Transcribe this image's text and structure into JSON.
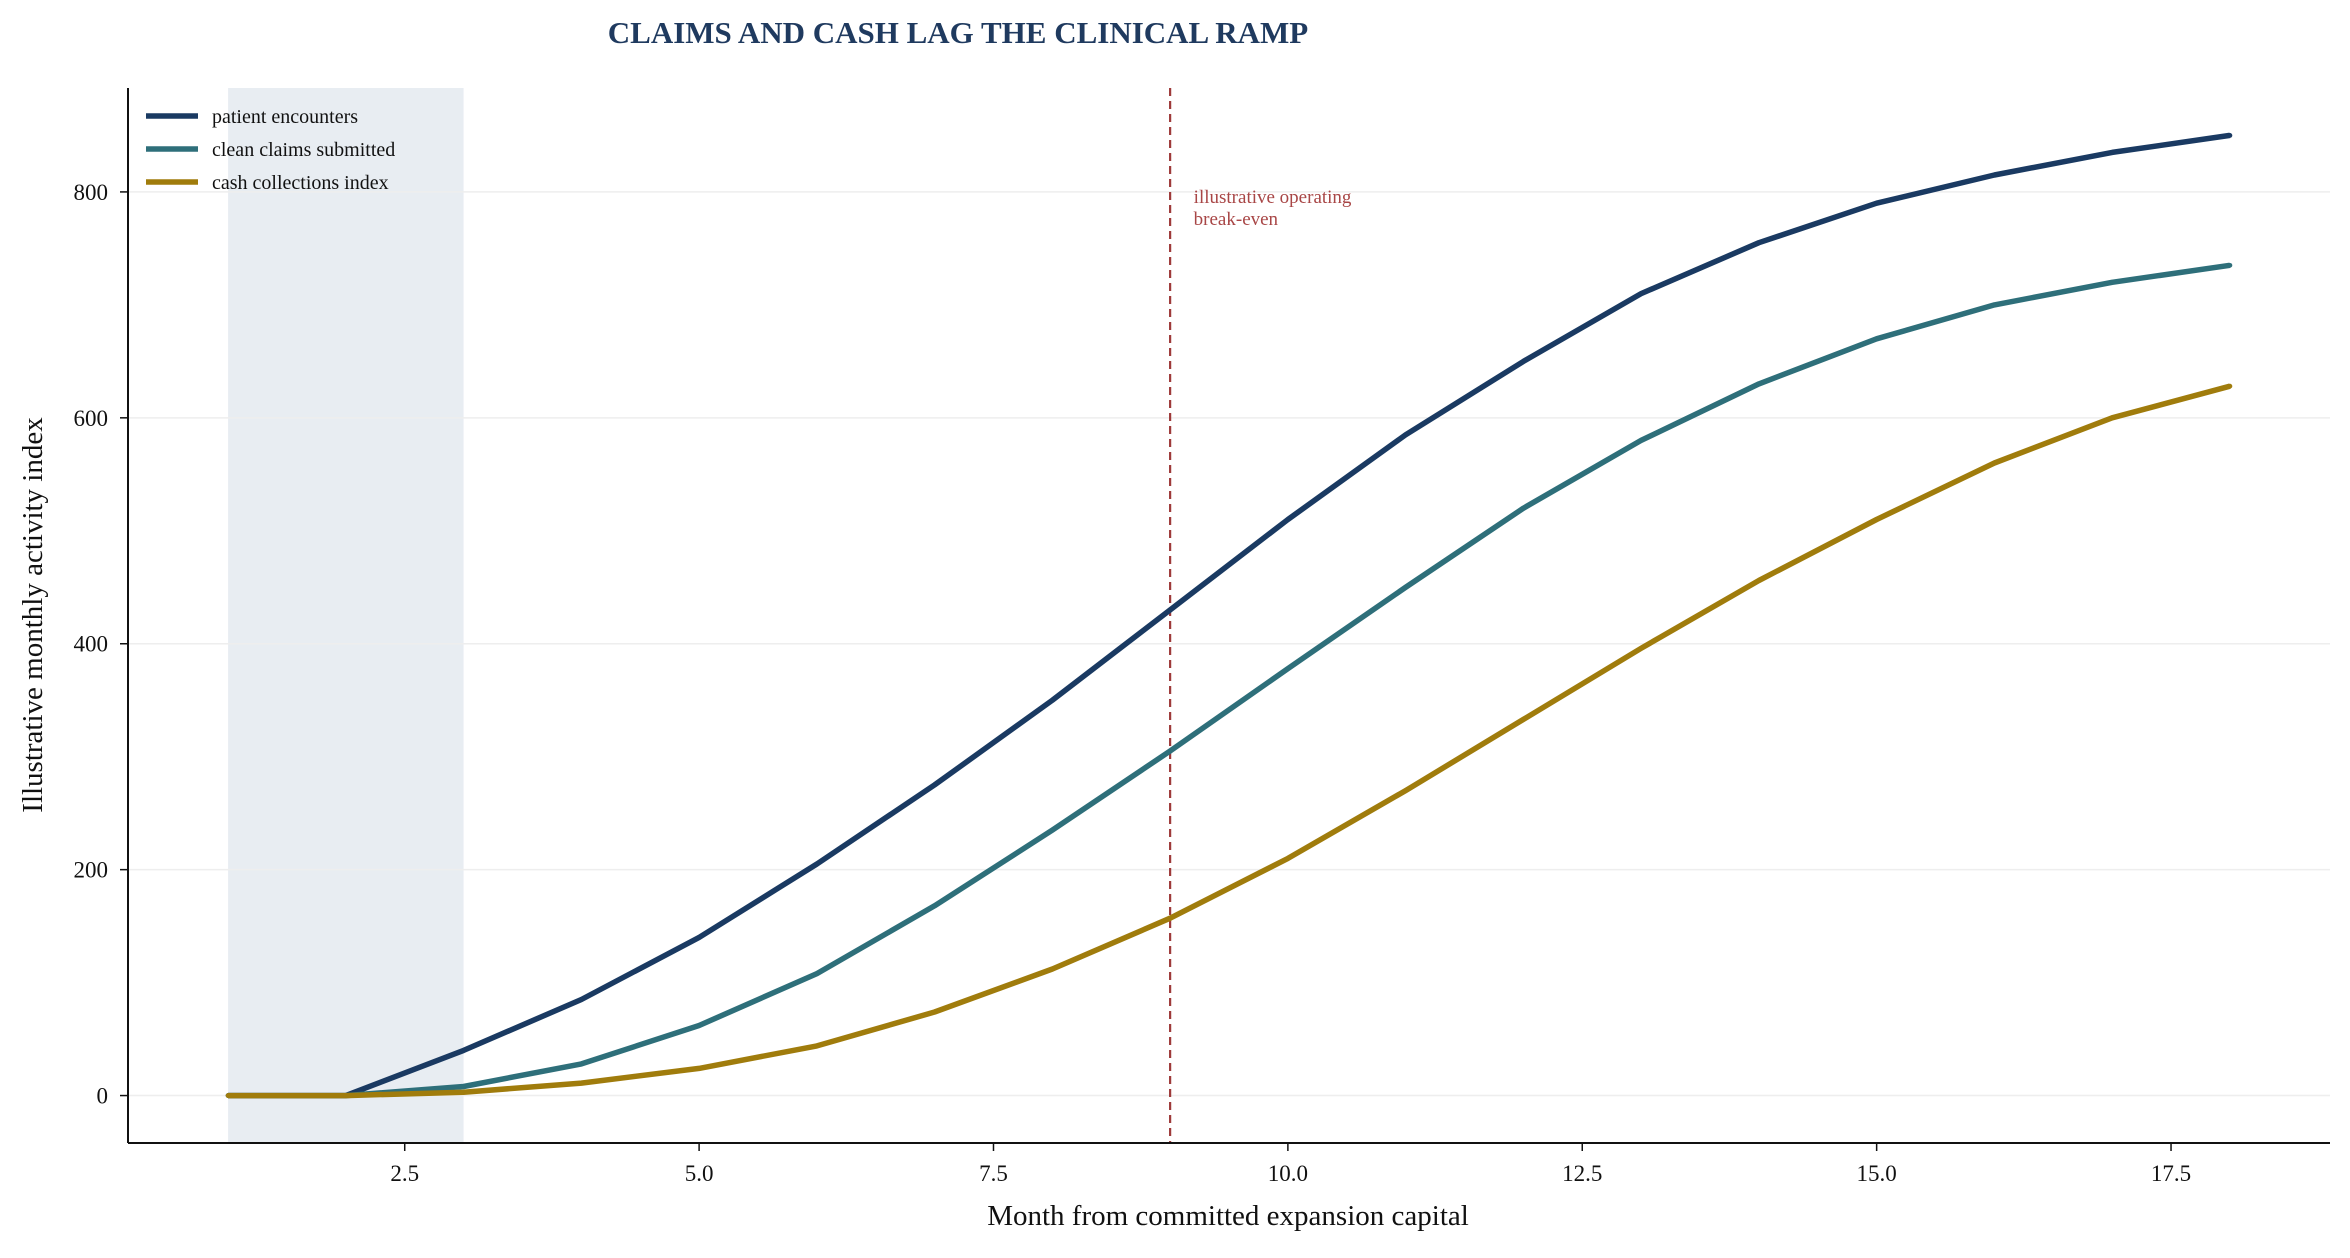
{
  "chart_data": {
    "type": "line",
    "title": "CLAIMS AND CASH LAG THE CLINICAL RAMP",
    "xlabel": "Month from committed expansion capital",
    "ylabel": "Illustrative monthly activity index",
    "xlim": [
      0.15,
      18.85
    ],
    "ylim": [
      -42,
      892
    ],
    "x_ticks": [
      2.5,
      5.0,
      7.5,
      10.0,
      12.5,
      15.0,
      17.5
    ],
    "x_tick_labels": [
      "2.5",
      "5.0",
      "7.5",
      "10.0",
      "12.5",
      "15.0",
      "17.5"
    ],
    "y_ticks": [
      0,
      200,
      400,
      600,
      800
    ],
    "y_tick_labels": [
      "0",
      "200",
      "400",
      "600",
      "800"
    ],
    "grid": "horizontal",
    "legend_position": "top-left",
    "x": [
      1,
      2,
      3,
      4,
      5,
      6,
      7,
      8,
      9,
      10,
      11,
      12,
      13,
      14,
      15,
      16,
      17,
      18
    ],
    "series": [
      {
        "name": "patient encounters",
        "color": "#1a3a62",
        "values": [
          0,
          0,
          40,
          85,
          140,
          205,
          275,
          350,
          430,
          510,
          585,
          650,
          710,
          755,
          790,
          815,
          835,
          850
        ]
      },
      {
        "name": "clean claims submitted",
        "color": "#2e6f7a",
        "values": [
          0,
          0,
          8,
          28,
          62,
          108,
          168,
          235,
          305,
          378,
          450,
          520,
          580,
          630,
          670,
          700,
          720,
          735
        ]
      },
      {
        "name": "cash collections index",
        "color": "#a07c0c",
        "values": [
          0,
          0,
          3,
          11,
          24,
          44,
          74,
          112,
          157,
          210,
          270,
          333,
          396,
          456,
          510,
          560,
          600,
          628
        ]
      }
    ],
    "shaded_region": {
      "x_start": 1,
      "x_end": 3,
      "color": "#e8edf2"
    },
    "reference_line": {
      "x": 9,
      "color": "#9e3a3a",
      "style": "dashed",
      "annotation": {
        "lines": [
          "illustrative operating",
          "break-even"
        ],
        "x": 9.2,
        "y": 790,
        "color": "#a84646"
      }
    },
    "colors": {
      "title": "#1f3a5f",
      "axis": "#111111",
      "grid": "#eeeeee"
    }
  }
}
